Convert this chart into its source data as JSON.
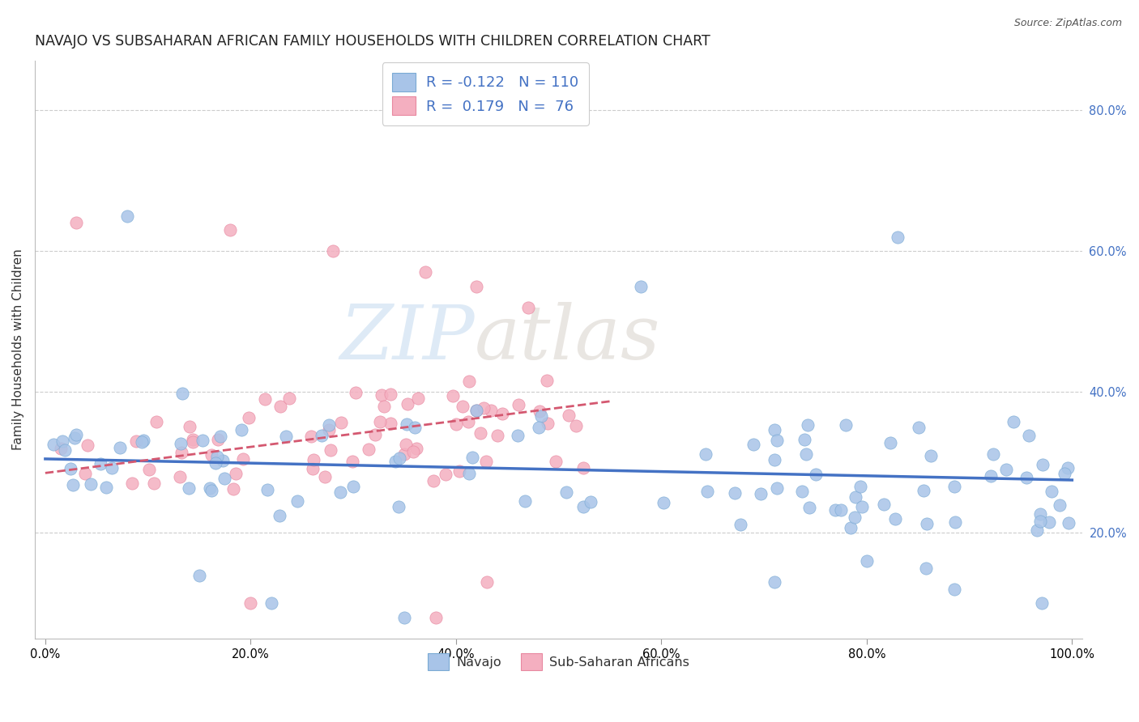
{
  "title": "NAVAJO VS SUBSAHARAN AFRICAN FAMILY HOUSEHOLDS WITH CHILDREN CORRELATION CHART",
  "source": "Source: ZipAtlas.com",
  "ylabel": "Family Households with Children",
  "watermark_zip": "ZIP",
  "watermark_atlas": "atlas",
  "navajo_color": "#a8c4e8",
  "navajo_edge_color": "#7aaad4",
  "subsaharan_color": "#f4afc0",
  "subsaharan_edge_color": "#e888a0",
  "navajo_line_color": "#4472c4",
  "subsaharan_line_color": "#d45870",
  "background_color": "#ffffff",
  "grid_color": "#cccccc",
  "right_tick_color": "#4472c4",
  "title_fontsize": 12.5,
  "axis_label_fontsize": 11,
  "tick_fontsize": 10.5,
  "legend_fontsize": 13,
  "yticks": [
    20,
    40,
    60,
    80
  ],
  "xticks": [
    0,
    20,
    40,
    60,
    80,
    100
  ],
  "xlim": [
    -1,
    101
  ],
  "ylim": [
    5,
    87
  ]
}
